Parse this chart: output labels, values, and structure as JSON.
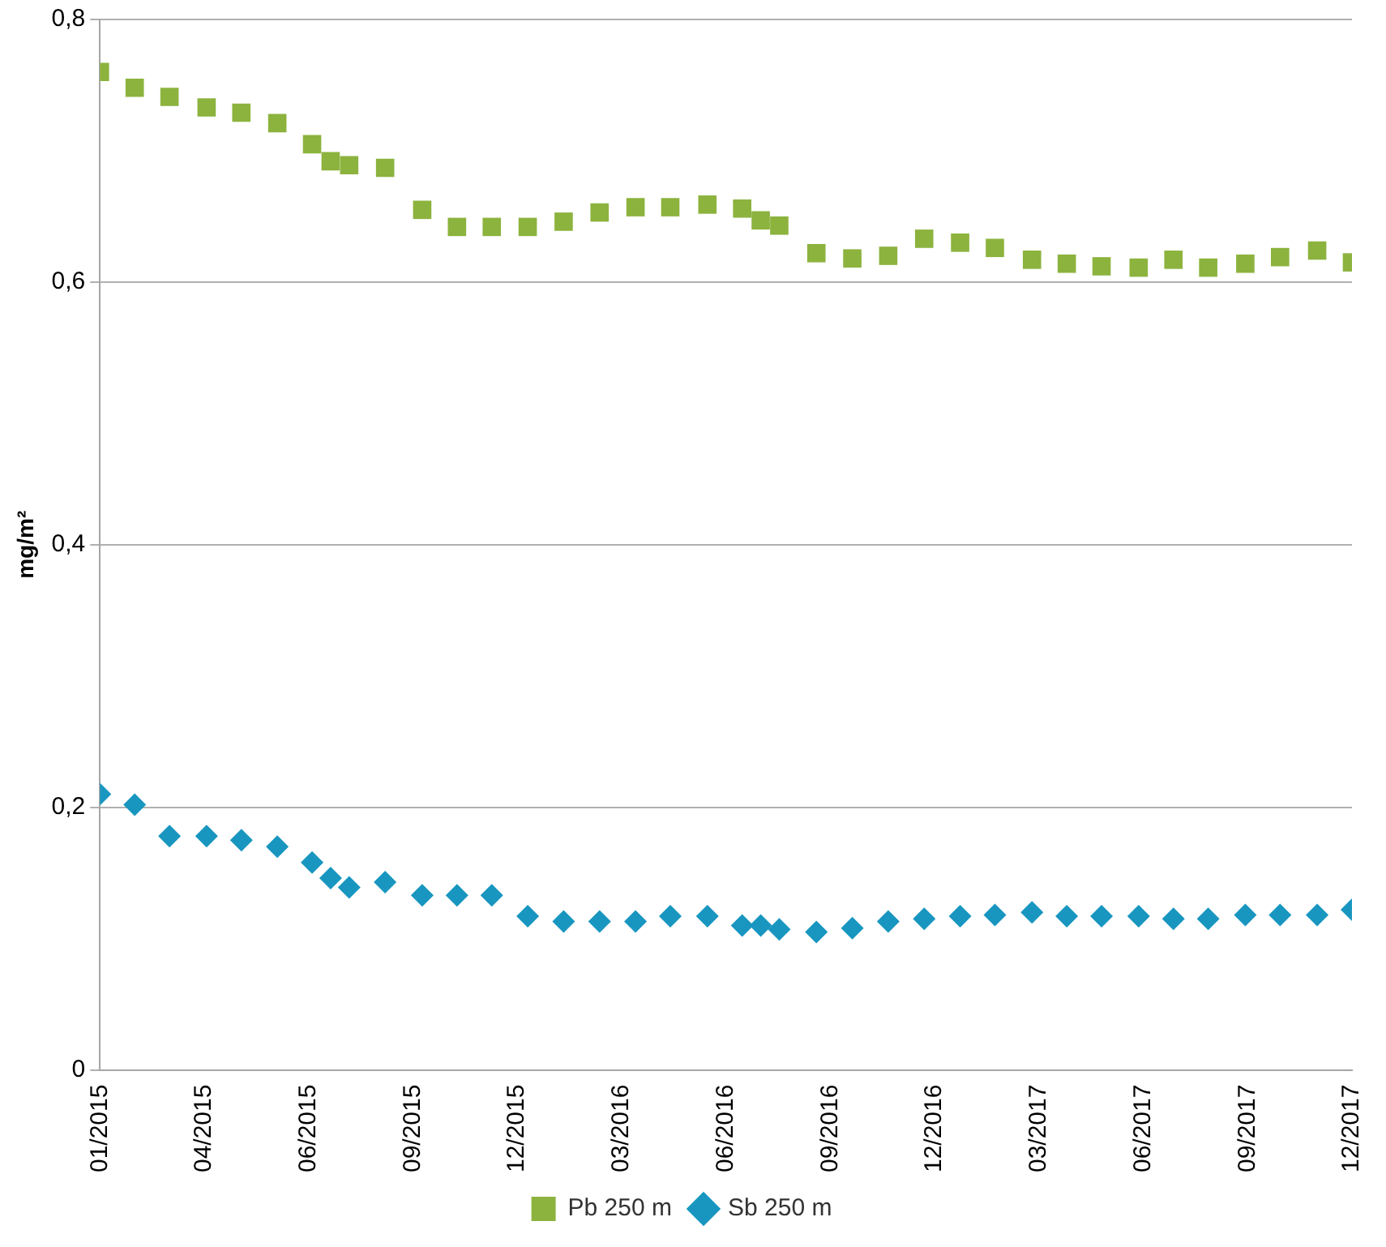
{
  "chart_data": {
    "type": "scatter",
    "ylabel": "mg/m²",
    "x": [
      "2015-01-01",
      "2015-01-31",
      "2015-03-02",
      "2015-04-03",
      "2015-05-03",
      "2015-06-03",
      "2015-07-03",
      "2015-07-19",
      "2015-08-04",
      "2015-09-04",
      "2015-10-06",
      "2015-11-05",
      "2015-12-05",
      "2016-01-05",
      "2016-02-05",
      "2016-03-07",
      "2016-04-07",
      "2016-05-07",
      "2016-06-08",
      "2016-07-08",
      "2016-07-24",
      "2016-08-09",
      "2016-09-10",
      "2016-10-11",
      "2016-11-11",
      "2016-12-12",
      "2017-01-12",
      "2017-02-11",
      "2017-03-15",
      "2017-04-14",
      "2017-05-14",
      "2017-06-15",
      "2017-07-15",
      "2017-08-14",
      "2017-09-15",
      "2017-10-15",
      "2017-11-16",
      "2017-12-16"
    ],
    "series": [
      {
        "name": "Pb 250 m",
        "color": "#8cb33e",
        "marker": "square",
        "values": [
          0.76,
          0.748,
          0.741,
          0.733,
          0.729,
          0.721,
          0.705,
          0.692,
          0.689,
          0.687,
          0.655,
          0.642,
          0.642,
          0.642,
          0.646,
          0.653,
          0.657,
          0.657,
          0.659,
          0.656,
          0.647,
          0.643,
          0.622,
          0.618,
          0.62,
          0.633,
          0.63,
          0.626,
          0.617,
          0.614,
          0.612,
          0.611,
          0.617,
          0.611,
          0.614,
          0.619,
          0.624,
          0.615
        ]
      },
      {
        "name": "Sb 250 m",
        "color": "#1896c0",
        "marker": "diamond",
        "values": [
          0.21,
          0.202,
          0.178,
          0.178,
          0.175,
          0.17,
          0.158,
          0.146,
          0.139,
          0.143,
          0.133,
          0.133,
          0.133,
          0.117,
          0.113,
          0.113,
          0.113,
          0.117,
          0.117,
          0.11,
          0.11,
          0.107,
          0.105,
          0.108,
          0.113,
          0.115,
          0.117,
          0.118,
          0.12,
          0.117,
          0.117,
          0.117,
          0.115,
          0.115,
          0.118,
          0.118,
          0.118,
          0.122
        ]
      }
    ],
    "xlim": [
      "2015-01-01",
      "2017-12-16"
    ],
    "xticks": [
      {
        "value": "2015-01-01",
        "label": "01/2015"
      },
      {
        "value": "2015-04-01",
        "label": "04/2015"
      },
      {
        "value": "2015-06-30",
        "label": "06/2015"
      },
      {
        "value": "2015-09-28",
        "label": "09/2015"
      },
      {
        "value": "2015-12-27",
        "label": "12/2015"
      },
      {
        "value": "2016-03-26",
        "label": "03/2016"
      },
      {
        "value": "2016-06-24",
        "label": "06/2016"
      },
      {
        "value": "2016-09-22",
        "label": "09/2016"
      },
      {
        "value": "2016-12-21",
        "label": "12/2016"
      },
      {
        "value": "2017-03-21",
        "label": "03/2017"
      },
      {
        "value": "2017-06-19",
        "label": "06/2017"
      },
      {
        "value": "2017-09-17",
        "label": "09/2017"
      },
      {
        "value": "2017-12-16",
        "label": "12/2017"
      }
    ],
    "ylim": [
      0,
      0.8
    ],
    "yticks": [
      0,
      {
        "value": 0.2,
        "label": "0,2"
      },
      {
        "value": 0.4,
        "label": "0,4"
      },
      {
        "value": 0.6,
        "label": "0,6"
      },
      {
        "value": 0.8,
        "label": "0,8"
      }
    ],
    "grid": "y",
    "legend": "bottom"
  }
}
